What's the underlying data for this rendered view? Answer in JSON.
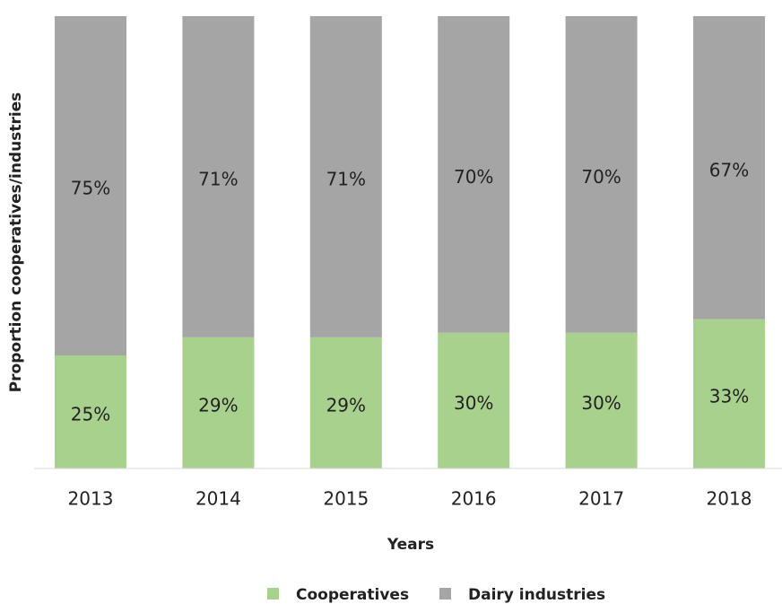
{
  "chart_data": {
    "type": "stacked-bar",
    "x_label": "Years",
    "y_label": "Proportion cooperatives/industries",
    "categories": [
      "2013",
      "2014",
      "2015",
      "2016",
      "2017",
      "2018"
    ],
    "series": [
      {
        "name": "Cooperatives",
        "color": "#a9d18e",
        "values": [
          25,
          29,
          29,
          30,
          30,
          33
        ],
        "value_labels": [
          "25%",
          "29%",
          "29%",
          "30%",
          "30%",
          "33%"
        ]
      },
      {
        "name": "Dairy industries",
        "color": "#a5a5a5",
        "values": [
          75,
          71,
          71,
          70,
          70,
          67
        ],
        "value_labels": [
          "75%",
          "71%",
          "71%",
          "70%",
          "70%",
          "67%"
        ]
      }
    ],
    "ylim": [
      0,
      100
    ],
    "legend": "bottom"
  }
}
